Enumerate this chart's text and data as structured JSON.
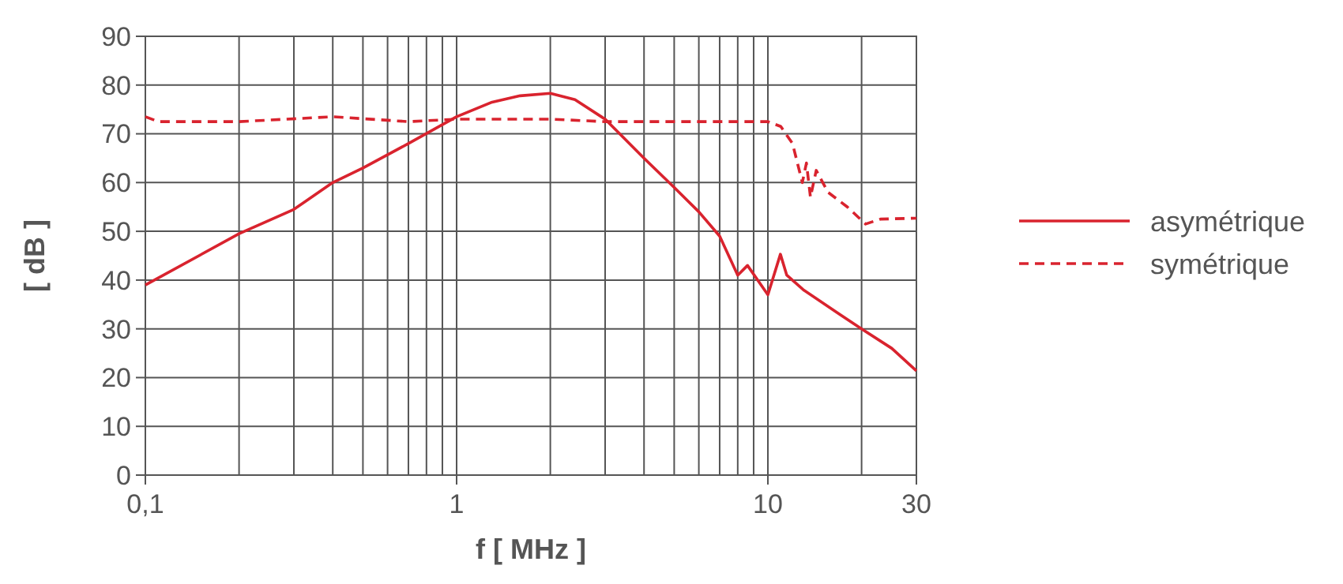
{
  "chart_data": {
    "type": "line",
    "xlabel": "f [ MHz ]",
    "ylabel": "[ dB ]",
    "log": "x",
    "xlim": [
      0.1,
      30
    ],
    "ylim": [
      0,
      90
    ],
    "xticks": [
      {
        "value": 0.1,
        "label": "0,1"
      },
      1,
      10,
      30
    ],
    "yticks": [
      0,
      10,
      20,
      30,
      40,
      50,
      60,
      70,
      80,
      90
    ],
    "grid": true,
    "legend": "right",
    "series": [
      {
        "name": "asymétrique",
        "color": "#d9232e",
        "line_style": "solid",
        "x": [
          0.1,
          0.2,
          0.3,
          0.4,
          0.5,
          0.7,
          1,
          1.3,
          1.6,
          2,
          2.4,
          3,
          4,
          5,
          6,
          7,
          8,
          8.6,
          10,
          10.97,
          11.5,
          13,
          17,
          20,
          25,
          30
        ],
        "values": [
          39,
          49.5,
          54.5,
          60,
          63,
          68,
          73.5,
          76.5,
          77.8,
          78.3,
          77,
          73,
          65,
          59,
          54,
          49,
          41,
          43,
          37,
          45.3,
          41,
          38,
          33,
          30,
          26,
          21.4
        ]
      },
      {
        "name": "symétrique",
        "color": "#d9232e",
        "line_style": "dashed",
        "x": [
          0.1,
          0.11,
          0.2,
          0.4,
          0.7,
          1,
          2,
          3,
          10,
          11,
          12,
          12.9,
          13.3,
          13.7,
          14.3,
          15.6,
          18,
          20.6,
          23,
          30
        ],
        "values": [
          73.5,
          72.5,
          72.5,
          73.5,
          72.5,
          73,
          73,
          72.5,
          72.5,
          71.5,
          68,
          60,
          64,
          57,
          62.5,
          58,
          55,
          51.5,
          52.5,
          52.7
        ]
      }
    ]
  }
}
